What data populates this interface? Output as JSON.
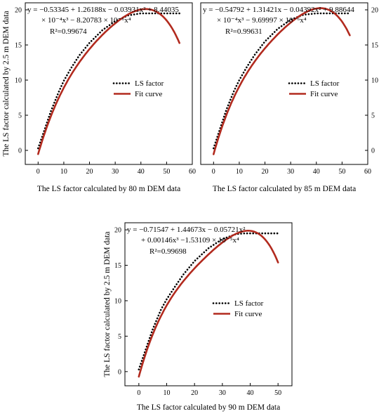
{
  "chart_data": [
    {
      "type": "line",
      "xlabel": "The LS factor calculated by 80 m DEM data",
      "ylabel": "The LS factor calculated by 2.5 m DEM data",
      "xlim": [
        -5,
        60
      ],
      "ylim": [
        -2,
        21
      ],
      "xticks": [
        0,
        10,
        20,
        30,
        40,
        50,
        60
      ],
      "yticks": [
        0,
        5,
        10,
        15,
        20
      ],
      "y_axis_side": "left",
      "equation_lines": [
        "y = −0.53345 + 1.26188x − 0.03931x² + 8.44035",
        "× 10⁻⁴x³ − 8.20783 × 10⁻⁶x⁴",
        "R²=0.99674"
      ],
      "legend": [
        "LS factor",
        "Fit curve"
      ],
      "legend_position": "middle-right",
      "series": [
        {
          "name": "LS factor",
          "style": "dotted",
          "color": "#000000",
          "x": [
            0,
            2,
            5,
            8,
            10,
            13,
            16,
            20,
            25,
            30,
            35,
            40,
            42,
            45,
            48,
            51,
            55
          ],
          "y": [
            0.3,
            2.4,
            5.6,
            8.3,
            9.9,
            11.8,
            13.5,
            15.3,
            17.1,
            18.4,
            19.2,
            19.5,
            19.5,
            19.5,
            19.5,
            19.5,
            19.5
          ]
        },
        {
          "name": "Fit curve",
          "style": "solid",
          "color": "#b22a1e",
          "coef": [
            -0.53345,
            1.26188,
            -0.03931,
            0.000844035,
            -8.20783e-06
          ],
          "x_range": [
            0,
            55
          ]
        }
      ]
    },
    {
      "type": "line",
      "xlabel": "The LS factor calculated by 85 m DEM data",
      "ylabel": "",
      "xlim": [
        -5,
        60
      ],
      "ylim": [
        -2,
        21
      ],
      "xticks": [
        0,
        10,
        20,
        30,
        40,
        50,
        60
      ],
      "yticks": [
        0,
        5,
        10,
        15,
        20
      ],
      "y_axis_side": "right",
      "equation_lines": [
        "y = −0.54792 + 1.31421x − 0.04392x² + 9.88644",
        "× 10⁻⁴x³ − 9.69997 × 10⁻⁶x⁴",
        "R²=0.99631"
      ],
      "legend": [
        "LS factor",
        "Fit curve"
      ],
      "legend_position": "middle-right",
      "series": [
        {
          "name": "LS factor",
          "style": "dotted",
          "color": "#000000",
          "x": [
            0,
            2,
            5,
            8,
            10,
            13,
            16,
            20,
            25,
            30,
            35,
            40,
            45,
            50,
            53
          ],
          "y": [
            0.3,
            2.5,
            5.8,
            8.5,
            10.0,
            11.9,
            13.6,
            15.5,
            17.3,
            18.6,
            19.3,
            19.5,
            19.5,
            19.5,
            19.5
          ]
        },
        {
          "name": "Fit curve",
          "style": "solid",
          "color": "#b22a1e",
          "coef": [
            -0.54792,
            1.31421,
            -0.04392,
            0.000988644,
            -9.69997e-06
          ],
          "x_range": [
            0,
            53
          ]
        }
      ]
    },
    {
      "type": "line",
      "xlabel": "The LS factor calculated by 90 m DEM data",
      "ylabel": "The LS factor calculated by 2.5 m DEM data",
      "xlim": [
        -5,
        55
      ],
      "ylim": [
        -2,
        21
      ],
      "xticks": [
        0,
        10,
        20,
        30,
        40,
        50
      ],
      "yticks": [
        0,
        5,
        10,
        15,
        20
      ],
      "y_axis_side": "left",
      "equation_lines": [
        "y = −0.71547 + 1.44673x − 0.05721x²",
        "+ 0.00146x³ −1.53109 × 10⁻⁵x⁴",
        "R²=0.99698"
      ],
      "legend": [
        "LS factor",
        "Fit curve"
      ],
      "legend_position": "middle-right",
      "series": [
        {
          "name": "LS factor",
          "style": "dotted",
          "color": "#000000",
          "x": [
            0,
            2,
            5,
            8,
            10,
            13,
            16,
            20,
            25,
            30,
            35,
            38,
            42,
            46,
            50
          ],
          "y": [
            0.3,
            2.6,
            6.0,
            8.8,
            10.2,
            12.0,
            13.7,
            15.6,
            17.4,
            18.7,
            19.4,
            19.5,
            19.5,
            19.5,
            19.5
          ]
        },
        {
          "name": "Fit curve",
          "style": "solid",
          "color": "#b22a1e",
          "coef": [
            -0.71547,
            1.44673,
            -0.05721,
            0.00146,
            -1.53109e-05
          ],
          "x_range": [
            0,
            50
          ]
        }
      ]
    }
  ]
}
